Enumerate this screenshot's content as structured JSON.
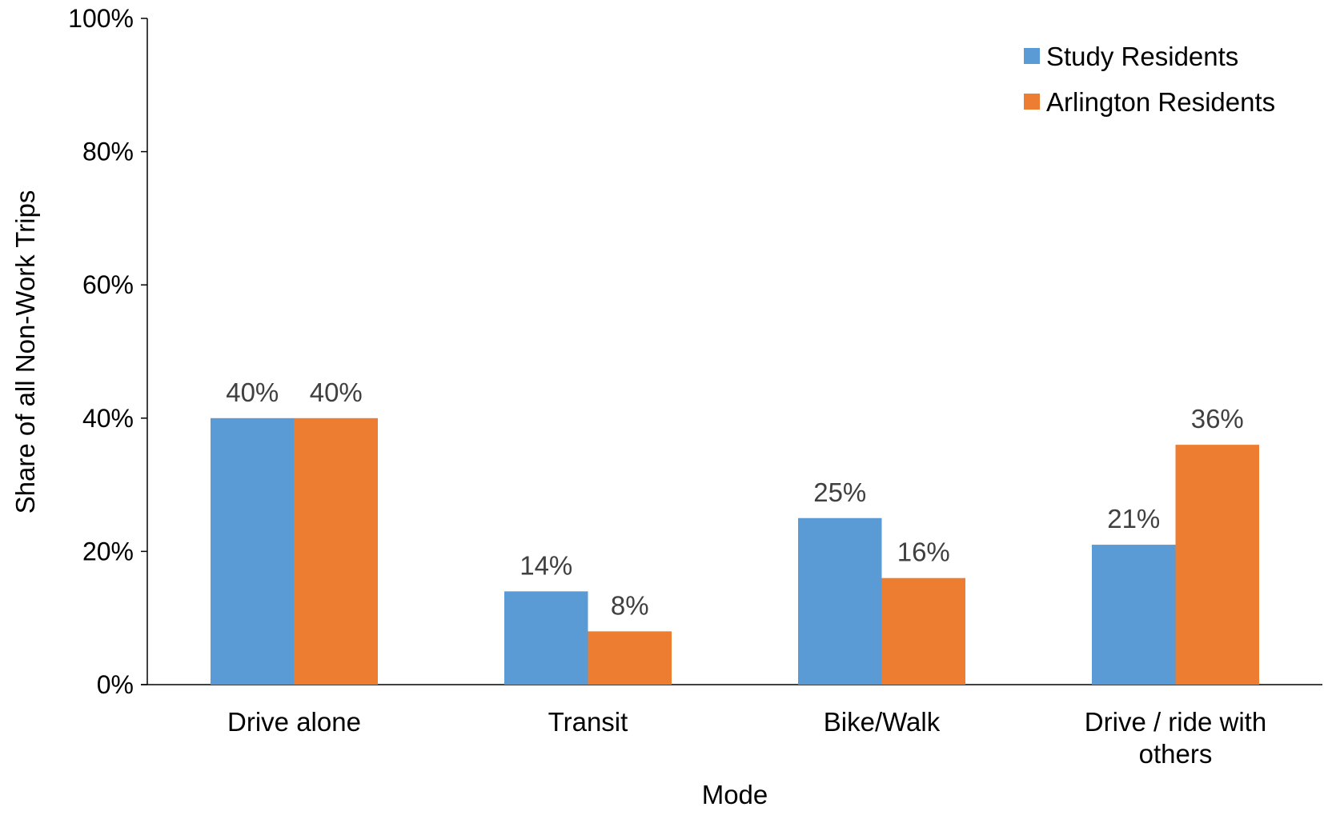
{
  "chart_data": {
    "type": "bar",
    "title": "",
    "xlabel": "Mode",
    "ylabel": "Share of all Non-Work Trips",
    "ylim": [
      0,
      100
    ],
    "yticks": [
      "0%",
      "20%",
      "40%",
      "60%",
      "80%",
      "100%"
    ],
    "ytick_values": [
      0,
      20,
      40,
      60,
      80,
      100
    ],
    "categories": [
      [
        "Drive alone"
      ],
      [
        "Transit"
      ],
      [
        "Bike/Walk"
      ],
      [
        "Drive / ride with",
        "others"
      ]
    ],
    "series": [
      {
        "name": "Study Residents",
        "color": "#5B9BD5",
        "values": [
          40,
          14,
          25,
          21
        ],
        "labels": [
          "40%",
          "14%",
          "25%",
          "21%"
        ]
      },
      {
        "name": "Arlington Residents",
        "color": "#ED7D31",
        "values": [
          40,
          8,
          16,
          36
        ],
        "labels": [
          "40%",
          "8%",
          "16%",
          "36%"
        ]
      }
    ],
    "grid": false,
    "legend_position": "top-right"
  }
}
